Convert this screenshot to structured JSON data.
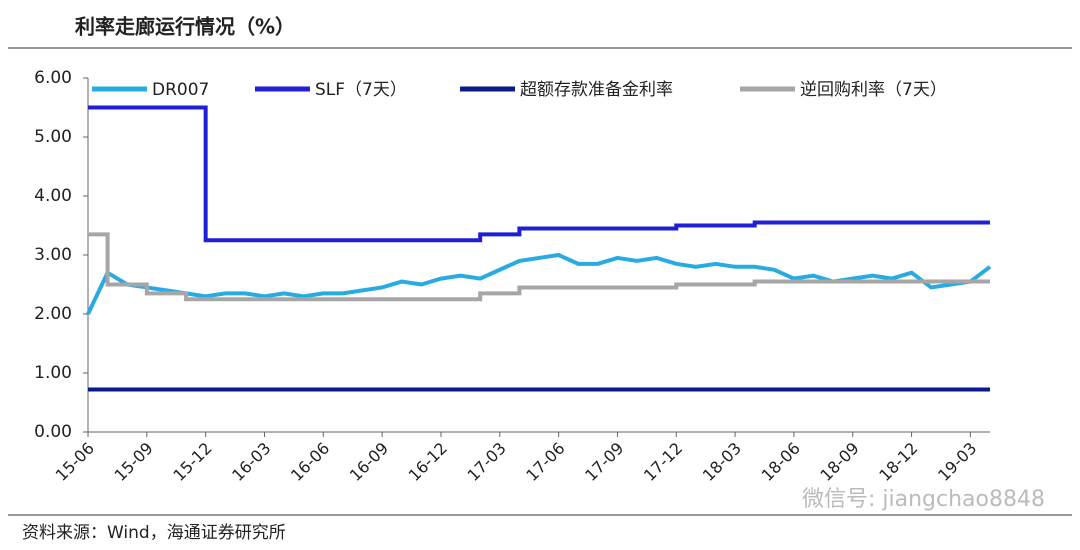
{
  "title": "利率走廊运行情况（%）",
  "source": "资料来源：Wind，海通证券研究所",
  "watermark": "微信号: jiangchao8848",
  "chart_data": {
    "type": "line",
    "categories": [
      "15-06",
      null,
      null,
      "15-09",
      null,
      null,
      "15-12",
      null,
      null,
      "16-03",
      null,
      null,
      "16-06",
      null,
      null,
      "16-09",
      null,
      null,
      "16-12",
      null,
      null,
      "17-03",
      null,
      null,
      "17-06",
      null,
      null,
      "17-09",
      null,
      null,
      "17-12",
      null,
      null,
      "18-03",
      null,
      null,
      "18-06",
      null,
      null,
      "18-09",
      null,
      null,
      "18-12",
      null,
      null,
      "19-03",
      null
    ],
    "ylim": [
      0,
      6
    ],
    "yticks": [
      {
        "value": 0,
        "label": "0.00"
      },
      {
        "value": 1,
        "label": "1.00"
      },
      {
        "value": 2,
        "label": "2.00"
      },
      {
        "value": 3,
        "label": "3.00"
      },
      {
        "value": 4,
        "label": "4.00"
      },
      {
        "value": 5,
        "label": "5.00"
      },
      {
        "value": 6,
        "label": "6.00"
      }
    ],
    "legend": "top",
    "series": [
      {
        "name": "DR007",
        "color": "#29abe2",
        "step": false,
        "values": [
          2.0,
          2.7,
          2.5,
          2.45,
          2.4,
          2.35,
          2.3,
          2.35,
          2.35,
          2.3,
          2.35,
          2.3,
          2.35,
          2.35,
          2.4,
          2.45,
          2.55,
          2.5,
          2.6,
          2.65,
          2.6,
          2.75,
          2.9,
          2.95,
          3.0,
          2.85,
          2.85,
          2.95,
          2.9,
          2.95,
          2.85,
          2.8,
          2.85,
          2.8,
          2.8,
          2.75,
          2.6,
          2.65,
          2.55,
          2.6,
          2.65,
          2.6,
          2.7,
          2.45,
          2.5,
          2.55,
          2.8
        ]
      },
      {
        "name": "SLF（7天）",
        "color": "#1f1fd6",
        "step": true,
        "values": [
          5.5,
          5.5,
          5.5,
          5.5,
          5.5,
          5.5,
          3.25,
          3.25,
          3.25,
          3.25,
          3.25,
          3.25,
          3.25,
          3.25,
          3.25,
          3.25,
          3.25,
          3.25,
          3.25,
          3.25,
          3.35,
          3.35,
          3.45,
          3.45,
          3.45,
          3.45,
          3.45,
          3.45,
          3.45,
          3.45,
          3.5,
          3.5,
          3.5,
          3.5,
          3.55,
          3.55,
          3.55,
          3.55,
          3.55,
          3.55,
          3.55,
          3.55,
          3.55,
          3.55,
          3.55,
          3.55,
          3.55
        ]
      },
      {
        "name": "超额存款准备金利率",
        "color": "#0a1a8c",
        "step": true,
        "values": [
          0.72,
          0.72,
          0.72,
          0.72,
          0.72,
          0.72,
          0.72,
          0.72,
          0.72,
          0.72,
          0.72,
          0.72,
          0.72,
          0.72,
          0.72,
          0.72,
          0.72,
          0.72,
          0.72,
          0.72,
          0.72,
          0.72,
          0.72,
          0.72,
          0.72,
          0.72,
          0.72,
          0.72,
          0.72,
          0.72,
          0.72,
          0.72,
          0.72,
          0.72,
          0.72,
          0.72,
          0.72,
          0.72,
          0.72,
          0.72,
          0.72,
          0.72,
          0.72,
          0.72,
          0.72,
          0.72,
          0.72
        ]
      },
      {
        "name": "逆回购利率（7天）",
        "color": "#a6a6a6",
        "step": true,
        "values": [
          3.35,
          2.5,
          2.5,
          2.35,
          2.35,
          2.25,
          2.25,
          2.25,
          2.25,
          2.25,
          2.25,
          2.25,
          2.25,
          2.25,
          2.25,
          2.25,
          2.25,
          2.25,
          2.25,
          2.25,
          2.35,
          2.35,
          2.45,
          2.45,
          2.45,
          2.45,
          2.45,
          2.45,
          2.45,
          2.45,
          2.5,
          2.5,
          2.5,
          2.5,
          2.55,
          2.55,
          2.55,
          2.55,
          2.55,
          2.55,
          2.55,
          2.55,
          2.55,
          2.55,
          2.55,
          2.55,
          2.55
        ]
      }
    ]
  }
}
